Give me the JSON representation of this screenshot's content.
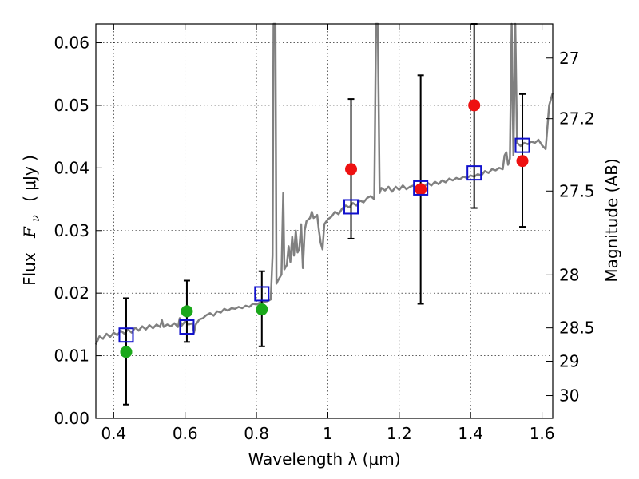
{
  "chart_data": {
    "type": "scatter",
    "xlabel": "Wavelength  λ (μm)",
    "ylabel_left_prefix": "Flux",
    "ylabel_left_symbol": "F",
    "ylabel_left_sub": "ν",
    "ylabel_left_unit": "(  μJy )",
    "ylabel_right": "Magnitude (AB)",
    "xlim": [
      0.35,
      1.63
    ],
    "ylim": [
      0.0,
      0.063
    ],
    "xticks": [
      {
        "value": 0.4,
        "label": "0.4"
      },
      {
        "value": 0.6,
        "label": "0.6"
      },
      {
        "value": 0.8,
        "label": "0.8"
      },
      {
        "value": 1.0,
        "label": "1"
      },
      {
        "value": 1.2,
        "label": "1.2"
      },
      {
        "value": 1.4,
        "label": "1.4"
      },
      {
        "value": 1.6,
        "label": "1.6"
      }
    ],
    "yticks": [
      {
        "value": 0.0,
        "label": "0.00"
      },
      {
        "value": 0.01,
        "label": "0.01"
      },
      {
        "value": 0.02,
        "label": "0.02"
      },
      {
        "value": 0.03,
        "label": "0.03"
      },
      {
        "value": 0.04,
        "label": "0.04"
      },
      {
        "value": 0.05,
        "label": "0.05"
      },
      {
        "value": 0.06,
        "label": "0.06"
      }
    ],
    "right_ticks": [
      {
        "mag": 27.0,
        "label": "27"
      },
      {
        "mag": 27.2,
        "label": "27.2"
      },
      {
        "mag": 27.5,
        "label": "27.5"
      },
      {
        "mag": 28.0,
        "label": "28"
      },
      {
        "mag": 28.5,
        "label": "28.5"
      },
      {
        "mag": 29.0,
        "label": "29"
      },
      {
        "mag": 30.0,
        "label": "30"
      }
    ],
    "grid": true,
    "colors": {
      "spectrum": "#808080",
      "green": "#1aa81a",
      "red": "#ee1111",
      "model_box": "#1010cc",
      "errorbar": "#000000"
    },
    "spectrum": [
      [
        0.35,
        0.0118
      ],
      [
        0.36,
        0.0131
      ],
      [
        0.37,
        0.0127
      ],
      [
        0.38,
        0.0135
      ],
      [
        0.39,
        0.013
      ],
      [
        0.4,
        0.0137
      ],
      [
        0.41,
        0.0133
      ],
      [
        0.42,
        0.014
      ],
      [
        0.43,
        0.0135
      ],
      [
        0.44,
        0.0142
      ],
      [
        0.45,
        0.0137
      ],
      [
        0.46,
        0.0145
      ],
      [
        0.47,
        0.014
      ],
      [
        0.48,
        0.0147
      ],
      [
        0.49,
        0.0142
      ],
      [
        0.5,
        0.0149
      ],
      [
        0.51,
        0.0144
      ],
      [
        0.52,
        0.015
      ],
      [
        0.53,
        0.0146
      ],
      [
        0.535,
        0.0157
      ],
      [
        0.54,
        0.0146
      ],
      [
        0.55,
        0.015
      ],
      [
        0.56,
        0.0147
      ],
      [
        0.57,
        0.0152
      ],
      [
        0.58,
        0.0146
      ],
      [
        0.585,
        0.016
      ],
      [
        0.59,
        0.0148
      ],
      [
        0.6,
        0.0155
      ],
      [
        0.61,
        0.015
      ],
      [
        0.62,
        0.0152
      ],
      [
        0.625,
        0.0137
      ],
      [
        0.63,
        0.015
      ],
      [
        0.64,
        0.0158
      ],
      [
        0.65,
        0.016
      ],
      [
        0.66,
        0.0165
      ],
      [
        0.67,
        0.0168
      ],
      [
        0.68,
        0.0164
      ],
      [
        0.69,
        0.0171
      ],
      [
        0.7,
        0.0169
      ],
      [
        0.71,
        0.0175
      ],
      [
        0.72,
        0.0172
      ],
      [
        0.73,
        0.0176
      ],
      [
        0.74,
        0.0175
      ],
      [
        0.75,
        0.0178
      ],
      [
        0.76,
        0.0176
      ],
      [
        0.77,
        0.018
      ],
      [
        0.78,
        0.0178
      ],
      [
        0.79,
        0.0183
      ],
      [
        0.8,
        0.0182
      ],
      [
        0.81,
        0.0185
      ],
      [
        0.82,
        0.0186
      ],
      [
        0.83,
        0.0187
      ],
      [
        0.84,
        0.019
      ],
      [
        0.845,
        0.026
      ],
      [
        0.848,
        0.063
      ],
      [
        0.853,
        0.063
      ],
      [
        0.856,
        0.0215
      ],
      [
        0.86,
        0.022
      ],
      [
        0.87,
        0.023
      ],
      [
        0.875,
        0.036
      ],
      [
        0.878,
        0.0238
      ],
      [
        0.885,
        0.0245
      ],
      [
        0.89,
        0.0275
      ],
      [
        0.895,
        0.025
      ],
      [
        0.9,
        0.029
      ],
      [
        0.905,
        0.026
      ],
      [
        0.91,
        0.03
      ],
      [
        0.915,
        0.0265
      ],
      [
        0.92,
        0.027
      ],
      [
        0.925,
        0.031
      ],
      [
        0.93,
        0.024
      ],
      [
        0.935,
        0.03
      ],
      [
        0.94,
        0.0315
      ],
      [
        0.95,
        0.032
      ],
      [
        0.955,
        0.033
      ],
      [
        0.96,
        0.032
      ],
      [
        0.97,
        0.0325
      ],
      [
        0.975,
        0.03
      ],
      [
        0.98,
        0.028
      ],
      [
        0.985,
        0.027
      ],
      [
        0.99,
        0.031
      ],
      [
        1.0,
        0.0318
      ],
      [
        1.01,
        0.0322
      ],
      [
        1.02,
        0.033
      ],
      [
        1.03,
        0.0326
      ],
      [
        1.04,
        0.0335
      ],
      [
        1.05,
        0.034
      ],
      [
        1.06,
        0.0337
      ],
      [
        1.07,
        0.0344
      ],
      [
        1.08,
        0.034
      ],
      [
        1.09,
        0.0348
      ],
      [
        1.1,
        0.0345
      ],
      [
        1.11,
        0.0352
      ],
      [
        1.12,
        0.0355
      ],
      [
        1.13,
        0.035
      ],
      [
        1.135,
        0.063
      ],
      [
        1.14,
        0.063
      ],
      [
        1.145,
        0.036
      ],
      [
        1.15,
        0.0368
      ],
      [
        1.16,
        0.0364
      ],
      [
        1.17,
        0.037
      ],
      [
        1.18,
        0.0362
      ],
      [
        1.19,
        0.037
      ],
      [
        1.2,
        0.0365
      ],
      [
        1.21,
        0.0372
      ],
      [
        1.22,
        0.0366
      ],
      [
        1.23,
        0.037
      ],
      [
        1.24,
        0.0372
      ],
      [
        1.25,
        0.0367
      ],
      [
        1.26,
        0.0374
      ],
      [
        1.27,
        0.037
      ],
      [
        1.28,
        0.0376
      ],
      [
        1.29,
        0.0372
      ],
      [
        1.3,
        0.0378
      ],
      [
        1.31,
        0.0374
      ],
      [
        1.32,
        0.038
      ],
      [
        1.33,
        0.0377
      ],
      [
        1.34,
        0.0383
      ],
      [
        1.35,
        0.038
      ],
      [
        1.36,
        0.0384
      ],
      [
        1.37,
        0.0382
      ],
      [
        1.38,
        0.0386
      ],
      [
        1.39,
        0.0384
      ],
      [
        1.4,
        0.0388
      ],
      [
        1.41,
        0.0386
      ],
      [
        1.42,
        0.039
      ],
      [
        1.43,
        0.0388
      ],
      [
        1.44,
        0.0395
      ],
      [
        1.45,
        0.0392
      ],
      [
        1.46,
        0.0398
      ],
      [
        1.47,
        0.0396
      ],
      [
        1.48,
        0.04
      ],
      [
        1.49,
        0.0398
      ],
      [
        1.495,
        0.042
      ],
      [
        1.5,
        0.0425
      ],
      [
        1.505,
        0.0405
      ],
      [
        1.51,
        0.0415
      ],
      [
        1.515,
        0.063
      ],
      [
        1.52,
        0.042
      ],
      [
        1.525,
        0.063
      ],
      [
        1.53,
        0.044
      ],
      [
        1.54,
        0.0435
      ],
      [
        1.55,
        0.044
      ],
      [
        1.56,
        0.0438
      ],
      [
        1.57,
        0.0442
      ],
      [
        1.58,
        0.044
      ],
      [
        1.59,
        0.0445
      ],
      [
        1.6,
        0.0436
      ],
      [
        1.61,
        0.043
      ],
      [
        1.62,
        0.05
      ],
      [
        1.63,
        0.052
      ]
    ],
    "errorbars": [
      {
        "x": 0.435,
        "low": 0.0022,
        "high": 0.0192
      },
      {
        "x": 0.605,
        "low": 0.0122,
        "high": 0.022
      },
      {
        "x": 0.815,
        "low": 0.0115,
        "high": 0.0235
      },
      {
        "x": 1.065,
        "low": 0.0287,
        "high": 0.051
      },
      {
        "x": 1.26,
        "low": 0.0183,
        "high": 0.0548
      },
      {
        "x": 1.41,
        "low": 0.0336,
        "high": 0.063
      },
      {
        "x": 1.545,
        "low": 0.0306,
        "high": 0.0518
      }
    ],
    "green_points": [
      {
        "x": 0.435,
        "y": 0.0106
      },
      {
        "x": 0.605,
        "y": 0.0171
      },
      {
        "x": 0.815,
        "y": 0.0174
      }
    ],
    "red_points": [
      {
        "x": 1.065,
        "y": 0.0398
      },
      {
        "x": 1.26,
        "y": 0.0366
      },
      {
        "x": 1.41,
        "y": 0.05
      },
      {
        "x": 1.545,
        "y": 0.0411
      }
    ],
    "model_points": [
      {
        "x": 0.435,
        "y": 0.0133
      },
      {
        "x": 0.605,
        "y": 0.0146
      },
      {
        "x": 0.815,
        "y": 0.0199
      },
      {
        "x": 1.065,
        "y": 0.0338
      },
      {
        "x": 1.26,
        "y": 0.0368
      },
      {
        "x": 1.41,
        "y": 0.0392
      },
      {
        "x": 1.545,
        "y": 0.0436
      }
    ]
  }
}
